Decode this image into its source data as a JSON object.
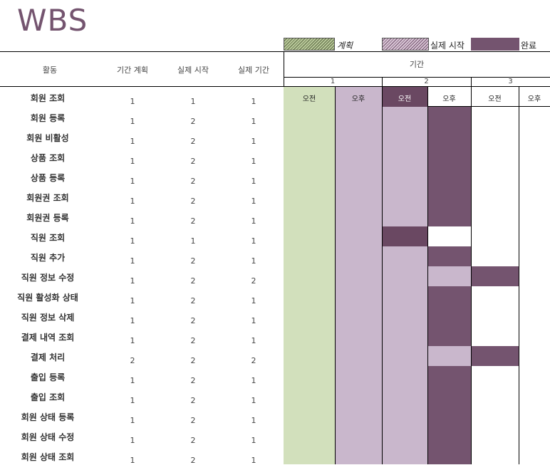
{
  "title": "WBS",
  "legend": {
    "plan": "계획",
    "start": "실제 시작",
    "done": "완료"
  },
  "headers": {
    "activity": "활동",
    "plan_duration": "기간 계획",
    "actual_start": "실제 시작",
    "actual_duration": "실제 기간",
    "period": "기간"
  },
  "period_numbers": [
    "1",
    "2",
    "3"
  ],
  "slots": [
    "오전",
    "오후",
    "오전",
    "오후",
    "오전",
    "오후"
  ],
  "colors": {
    "accent": "#74546f",
    "plan": "#d2e0bc",
    "start": "#c9b7cc",
    "done": "#74546f"
  },
  "rows": [
    {
      "name": "회원 조회",
      "plan_duration": "1",
      "actual_start": "1",
      "actual_duration": "1"
    },
    {
      "name": "회원 등록",
      "plan_duration": "1",
      "actual_start": "2",
      "actual_duration": "1"
    },
    {
      "name": "회원 비활성",
      "plan_duration": "1",
      "actual_start": "2",
      "actual_duration": "1"
    },
    {
      "name": "상품 조회",
      "plan_duration": "1",
      "actual_start": "2",
      "actual_duration": "1"
    },
    {
      "name": "상품 등록",
      "plan_duration": "1",
      "actual_start": "2",
      "actual_duration": "1"
    },
    {
      "name": "회원권 조회",
      "plan_duration": "1",
      "actual_start": "2",
      "actual_duration": "1"
    },
    {
      "name": "회원권 등록",
      "plan_duration": "1",
      "actual_start": "2",
      "actual_duration": "1"
    },
    {
      "name": "직원 조회",
      "plan_duration": "1",
      "actual_start": "1",
      "actual_duration": "1"
    },
    {
      "name": "직원 추가",
      "plan_duration": "1",
      "actual_start": "2",
      "actual_duration": "1"
    },
    {
      "name": "직원 정보 수정",
      "plan_duration": "1",
      "actual_start": "2",
      "actual_duration": "2"
    },
    {
      "name": "직원 활성화 상태",
      "plan_duration": "1",
      "actual_start": "2",
      "actual_duration": "1"
    },
    {
      "name": "직원 정보 삭제",
      "plan_duration": "1",
      "actual_start": "2",
      "actual_duration": "1"
    },
    {
      "name": "결제 내역 조회",
      "plan_duration": "1",
      "actual_start": "2",
      "actual_duration": "1"
    },
    {
      "name": "결제 처리",
      "plan_duration": "2",
      "actual_start": "2",
      "actual_duration": "2"
    },
    {
      "name": "출입 등록",
      "plan_duration": "1",
      "actual_start": "2",
      "actual_duration": "1"
    },
    {
      "name": "출입 조회",
      "plan_duration": "1",
      "actual_start": "2",
      "actual_duration": "1"
    },
    {
      "name": "회원 상태 등록",
      "plan_duration": "1",
      "actual_start": "2",
      "actual_duration": "1"
    },
    {
      "name": "회원 상태 수정",
      "plan_duration": "1",
      "actual_start": "2",
      "actual_duration": "1"
    },
    {
      "name": "회원 상태 조회",
      "plan_duration": "1",
      "actual_start": "2",
      "actual_duration": "1"
    }
  ]
}
